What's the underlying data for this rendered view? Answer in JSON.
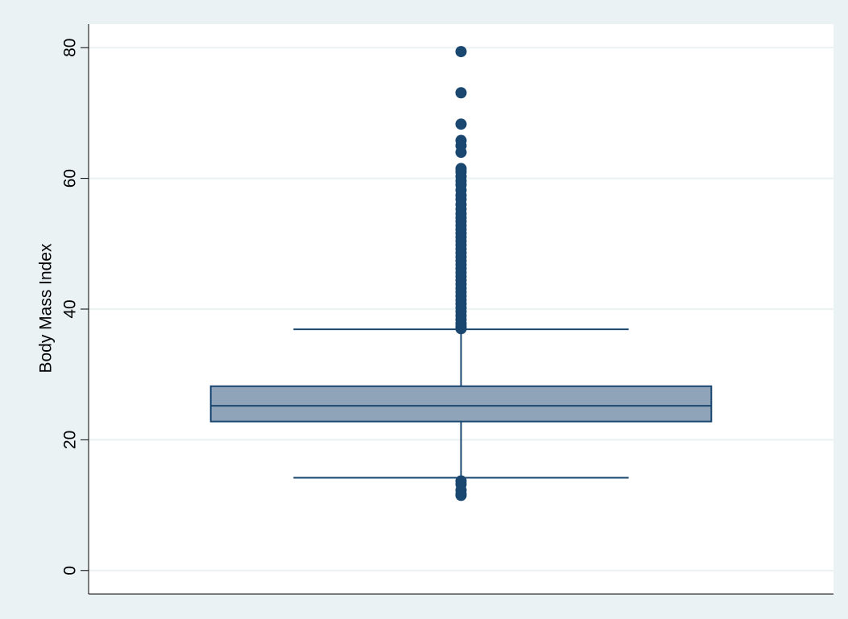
{
  "chart_data": {
    "type": "box",
    "y_label": "Body Mass Index",
    "ylim": [
      -3.6,
      83.6
    ],
    "yticks": [
      0,
      20,
      40,
      60,
      80
    ],
    "grid": true,
    "color": "#1a476f",
    "fill": "#90a4b9",
    "boxes": [
      {
        "whisker_low": 14.2,
        "q1": 22.8,
        "median": 25.2,
        "q3": 28.2,
        "whisker_high": 36.9,
        "outliers": [
          79.4,
          73.1,
          68.3,
          65.8,
          65.0,
          64.0,
          61.5,
          61.0,
          60.3,
          59.6,
          59.0,
          58.2,
          57.4,
          56.8,
          56.0,
          55.3,
          54.6,
          54.0,
          53.4,
          52.8,
          52.2,
          51.6,
          51.0,
          50.4,
          49.8,
          49.2,
          48.6,
          48.0,
          47.4,
          46.8,
          46.2,
          45.6,
          45.0,
          44.4,
          43.8,
          43.2,
          42.6,
          42.0,
          41.4,
          40.8,
          40.2,
          39.6,
          39.0,
          38.4,
          37.8,
          37.3,
          37.0,
          13.7,
          13.2,
          12.3,
          11.7,
          11.5
        ]
      }
    ]
  }
}
